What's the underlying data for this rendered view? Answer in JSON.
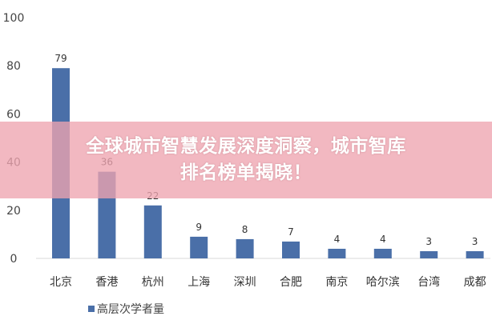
{
  "chart_data": {
    "type": "bar",
    "categories": [
      "北京",
      "香港",
      "杭州",
      "上海",
      "深圳",
      "合肥",
      "南京",
      "哈尔滨",
      "台湾",
      "成都"
    ],
    "series": [
      {
        "name": "高层次学者量",
        "values": [
          79,
          36,
          22,
          9,
          8,
          7,
          4,
          4,
          3,
          3
        ]
      }
    ],
    "ylim": [
      0,
      100
    ],
    "yticks": [
      0,
      20,
      40,
      60,
      80,
      100
    ],
    "grid": false,
    "legend": "bottom-left",
    "bar_color": "#4a6fa8"
  },
  "banner": {
    "line1": "全球城市智慧发展深度洞察，城市智库",
    "line2": "排名榜单揭晓！"
  }
}
